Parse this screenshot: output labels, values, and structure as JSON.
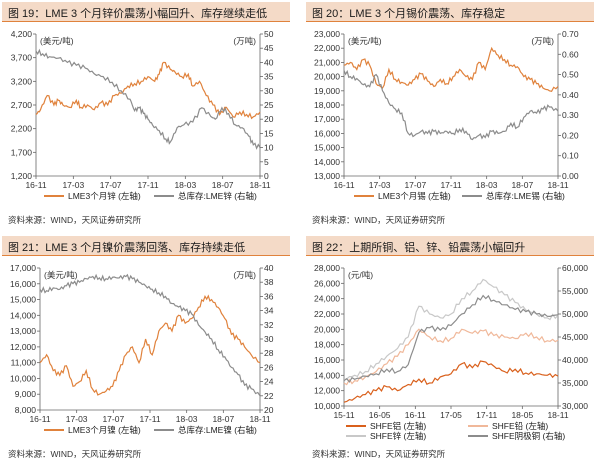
{
  "chart_data": [
    {
      "type": "line",
      "title": "图 19：LME 3 个月锌价震荡小幅回升、库存继续走低",
      "left_unit": "(美元/吨)",
      "right_unit": "(万吨)",
      "x_ticks": [
        "16-11",
        "17-03",
        "17-07",
        "17-11",
        "18-03",
        "18-07",
        "18-11"
      ],
      "ylim_left": [
        1200,
        4200
      ],
      "yticks_left": [
        "4,200",
        "3,700",
        "3,200",
        "2,700",
        "2,200",
        "1,700",
        "1,200"
      ],
      "ylim_right": [
        0,
        50
      ],
      "yticks_right": [
        "50",
        "45",
        "40",
        "35",
        "30",
        "25",
        "20",
        "15",
        "10",
        "5",
        "0"
      ],
      "series": [
        {
          "name": "LME3个月锌  (左轴)",
          "axis": "left",
          "color": "#e0823c",
          "x": [
            0,
            0.02,
            0.05,
            0.08,
            0.1,
            0.12,
            0.15,
            0.18,
            0.2,
            0.23,
            0.26,
            0.29,
            0.32,
            0.35,
            0.38,
            0.41,
            0.44,
            0.47,
            0.5,
            0.53,
            0.55,
            0.57,
            0.6,
            0.62,
            0.65,
            0.68,
            0.7,
            0.73,
            0.76,
            0.79,
            0.82,
            0.85,
            0.88,
            0.91,
            0.94,
            0.97,
            1
          ],
          "values": [
            2500,
            2600,
            2900,
            2700,
            2800,
            2700,
            2650,
            2800,
            2650,
            2700,
            2600,
            2750,
            2700,
            2900,
            2950,
            3100,
            3150,
            3200,
            3300,
            3200,
            3350,
            3600,
            3450,
            3400,
            3300,
            3350,
            3100,
            3200,
            2900,
            2700,
            2500,
            2650,
            2450,
            2550,
            2500,
            2450,
            2550
          ]
        },
        {
          "name": "总库存:LME锌  (右轴)",
          "axis": "right",
          "color": "#8c8c8c",
          "x": [
            0,
            0.03,
            0.06,
            0.1,
            0.14,
            0.18,
            0.22,
            0.26,
            0.3,
            0.34,
            0.38,
            0.42,
            0.44,
            0.46,
            0.48,
            0.5,
            0.52,
            0.55,
            0.58,
            0.6,
            0.63,
            0.66,
            0.7,
            0.74,
            0.78,
            0.8,
            0.83,
            0.86,
            0.89,
            0.92,
            0.95,
            0.97,
            1
          ],
          "values": [
            44,
            43,
            42,
            41.5,
            40,
            39,
            38,
            36,
            35,
            33,
            30,
            27,
            23,
            24,
            22,
            20,
            18,
            16,
            13,
            12,
            17,
            18,
            19,
            24,
            21,
            20,
            24,
            22,
            18,
            17,
            14,
            11,
            10
          ]
        }
      ]
    },
    {
      "type": "line",
      "title": "图 20：LME 3 个月锡价震荡、库存稳定",
      "left_unit": "(美元/吨)",
      "right_unit": "(万吨)",
      "x_ticks": [
        "16-11",
        "17-03",
        "17-07",
        "17-11",
        "18-03",
        "18-07",
        "18-11"
      ],
      "ylim_left": [
        13000,
        23000
      ],
      "yticks_left": [
        "23,000",
        "22,000",
        "21,000",
        "20,000",
        "19,000",
        "18,000",
        "17,000",
        "16,000",
        "15,000",
        "14,000",
        "13,000"
      ],
      "ylim_right": [
        0,
        0.7
      ],
      "yticks_right": [
        "0.70",
        "0.60",
        "0.50",
        "0.40",
        "0.30",
        "0.20",
        "0.10",
        "0.00"
      ],
      "series": [
        {
          "name": "LME3个月锡  (左轴)",
          "axis": "left",
          "color": "#e0823c",
          "x": [
            0,
            0.03,
            0.06,
            0.09,
            0.12,
            0.15,
            0.18,
            0.21,
            0.24,
            0.27,
            0.3,
            0.33,
            0.36,
            0.39,
            0.42,
            0.45,
            0.48,
            0.51,
            0.54,
            0.57,
            0.6,
            0.63,
            0.66,
            0.69,
            0.72,
            0.75,
            0.78,
            0.81,
            0.84,
            0.87,
            0.9,
            0.93,
            0.96,
            1
          ],
          "values": [
            20800,
            21000,
            20500,
            21200,
            20800,
            19500,
            19200,
            20500,
            19800,
            19600,
            19400,
            19800,
            20200,
            19700,
            19300,
            19800,
            19500,
            20000,
            20500,
            20000,
            19800,
            21000,
            20500,
            22000,
            21500,
            21200,
            20800,
            20700,
            20000,
            19800,
            19500,
            19200,
            19000,
            19300
          ]
        },
        {
          "name": "总库存:LME锡  (右轴)",
          "axis": "right",
          "color": "#8c8c8c",
          "x": [
            0,
            0.03,
            0.06,
            0.09,
            0.12,
            0.15,
            0.18,
            0.21,
            0.24,
            0.27,
            0.3,
            0.33,
            0.36,
            0.39,
            0.42,
            0.45,
            0.48,
            0.51,
            0.54,
            0.57,
            0.6,
            0.63,
            0.66,
            0.69,
            0.72,
            0.75,
            0.78,
            0.81,
            0.84,
            0.87,
            0.9,
            0.93,
            0.96,
            1
          ],
          "values": [
            0.52,
            0.49,
            0.48,
            0.45,
            0.44,
            0.5,
            0.42,
            0.36,
            0.33,
            0.31,
            0.21,
            0.2,
            0.22,
            0.21,
            0.22,
            0.21,
            0.22,
            0.21,
            0.23,
            0.22,
            0.18,
            0.2,
            0.19,
            0.22,
            0.21,
            0.22,
            0.26,
            0.24,
            0.29,
            0.32,
            0.31,
            0.33,
            0.34,
            0.32
          ]
        }
      ]
    },
    {
      "type": "line",
      "title": "图 21：LME 3 个月镍价震荡回落、库存持续走低",
      "left_unit": "(美元/吨)",
      "right_unit": "(万吨)",
      "x_ticks": [
        "16-11",
        "17-03",
        "17-07",
        "17-11",
        "18-03",
        "18-07",
        "18-11"
      ],
      "ylim_left": [
        8000,
        17000
      ],
      "yticks_left": [
        "17,000",
        "16,000",
        "15,000",
        "14,000",
        "13,000",
        "12,000",
        "11,000",
        "10,000",
        "9,000",
        "8,000"
      ],
      "ylim_right": [
        20,
        40
      ],
      "yticks_right": [
        "40",
        "38",
        "36",
        "34",
        "32",
        "30",
        "28",
        "26",
        "24",
        "22",
        "20"
      ],
      "series": [
        {
          "name": "LME3个月镍  (左轴)",
          "axis": "left",
          "color": "#e0823c",
          "x": [
            0,
            0.03,
            0.06,
            0.09,
            0.12,
            0.15,
            0.18,
            0.21,
            0.24,
            0.27,
            0.3,
            0.33,
            0.36,
            0.39,
            0.42,
            0.45,
            0.48,
            0.51,
            0.54,
            0.57,
            0.6,
            0.63,
            0.66,
            0.69,
            0.72,
            0.75,
            0.78,
            0.81,
            0.84,
            0.87,
            0.9,
            0.93,
            0.96,
            1
          ],
          "values": [
            11000,
            11500,
            10500,
            10200,
            10800,
            9500,
            9800,
            10500,
            9300,
            9000,
            9200,
            9500,
            10500,
            11500,
            12000,
            11000,
            12500,
            11500,
            13000,
            13500,
            13000,
            14000,
            13500,
            13800,
            14500,
            15200,
            15000,
            14500,
            13800,
            12800,
            12500,
            12000,
            11500,
            11000
          ]
        },
        {
          "name": "总库存:LME镍  (右轴)",
          "axis": "right",
          "color": "#8c8c8c",
          "x": [
            0,
            0.03,
            0.06,
            0.09,
            0.12,
            0.15,
            0.18,
            0.21,
            0.24,
            0.27,
            0.3,
            0.33,
            0.36,
            0.39,
            0.42,
            0.45,
            0.48,
            0.51,
            0.54,
            0.57,
            0.6,
            0.63,
            0.66,
            0.69,
            0.72,
            0.75,
            0.78,
            0.81,
            0.84,
            0.87,
            0.9,
            0.93,
            0.96,
            1
          ],
          "values": [
            37,
            36.8,
            37.2,
            37,
            37.5,
            37.8,
            38,
            38.5,
            38.8,
            38.6,
            38.5,
            38.7,
            38.6,
            38.8,
            38.5,
            38,
            37.5,
            37,
            36.5,
            36,
            35,
            34.5,
            34,
            33.5,
            32,
            31,
            30,
            28.5,
            27.5,
            26,
            25,
            23.5,
            23,
            22
          ]
        }
      ]
    },
    {
      "type": "line",
      "title": "图 22：上期所铜、铝、锌、铅震荡小幅回升",
      "left_unit": "(元/吨)",
      "x_ticks": [
        "15-11",
        "16-05",
        "16-11",
        "17-05",
        "17-11",
        "18-05",
        "18-11"
      ],
      "ylim_left": [
        10000,
        28000
      ],
      "yticks_left": [
        "28,000",
        "26,000",
        "24,000",
        "22,000",
        "20,000",
        "18,000",
        "16,000",
        "14,000",
        "12,000",
        "10,000"
      ],
      "ylim_right": [
        30000,
        60000
      ],
      "yticks_right": [
        "60,000",
        "55,000",
        "50,000",
        "45,000",
        "40,000",
        "35,000",
        "30,000"
      ],
      "series": [
        {
          "name": "SHFE铝  (左轴)",
          "axis": "left",
          "color": "#d9601c",
          "x": [
            0,
            0.05,
            0.1,
            0.15,
            0.2,
            0.25,
            0.3,
            0.35,
            0.4,
            0.45,
            0.5,
            0.55,
            0.6,
            0.65,
            0.7,
            0.75,
            0.8,
            0.85,
            0.9,
            0.95,
            1
          ],
          "values": [
            10500,
            11000,
            11500,
            12000,
            12500,
            12000,
            12800,
            13500,
            13000,
            13800,
            14200,
            15500,
            15000,
            15800,
            15200,
            14500,
            14800,
            14300,
            14200,
            14000,
            13900
          ]
        },
        {
          "name": "SHFE铅  (左轴)",
          "axis": "left",
          "color": "#f0b89a",
          "x": [
            0,
            0.05,
            0.1,
            0.15,
            0.2,
            0.25,
            0.3,
            0.35,
            0.4,
            0.45,
            0.5,
            0.55,
            0.6,
            0.65,
            0.7,
            0.75,
            0.8,
            0.85,
            0.9,
            0.95,
            1
          ],
          "values": [
            13000,
            13300,
            13800,
            14500,
            15500,
            16500,
            18000,
            20000,
            19000,
            18500,
            18800,
            20000,
            19500,
            19800,
            19200,
            19000,
            18800,
            19500,
            19000,
            18500,
            18600
          ]
        },
        {
          "name": "SHFE锌  (左轴)",
          "axis": "left",
          "color": "#c8c8c8",
          "x": [
            0,
            0.05,
            0.1,
            0.15,
            0.2,
            0.25,
            0.3,
            0.35,
            0.4,
            0.45,
            0.5,
            0.55,
            0.6,
            0.65,
            0.7,
            0.75,
            0.8,
            0.85,
            0.9,
            0.95,
            1
          ],
          "values": [
            13500,
            14000,
            14500,
            15500,
            16500,
            17500,
            19000,
            23000,
            22000,
            21500,
            22000,
            24000,
            25000,
            26500,
            25500,
            24500,
            23500,
            22500,
            22000,
            21500,
            21800
          ]
        },
        {
          "name": "SHFE阴极铜  (右轴)",
          "axis": "right",
          "color": "#8c8c8c",
          "x": [
            0,
            0.05,
            0.1,
            0.15,
            0.2,
            0.25,
            0.3,
            0.35,
            0.4,
            0.45,
            0.5,
            0.55,
            0.6,
            0.65,
            0.7,
            0.75,
            0.8,
            0.85,
            0.9,
            0.95,
            1
          ],
          "values": [
            35500,
            35800,
            36500,
            37000,
            38000,
            37500,
            39000,
            46000,
            47000,
            46500,
            47500,
            50000,
            52000,
            54000,
            53000,
            52000,
            51000,
            50500,
            50000,
            49500,
            49800
          ]
        }
      ]
    }
  ],
  "sources": [
    "资料来源：WIND，天风证券研究所",
    "资料来源：WIND，天风证券研究所",
    "资料来源：WIND，天风证券研究所",
    "资料来源：WIND，天风证券研究所"
  ],
  "colors": {
    "title_bg": "#f4dac7",
    "title_border": "#e0823c"
  }
}
